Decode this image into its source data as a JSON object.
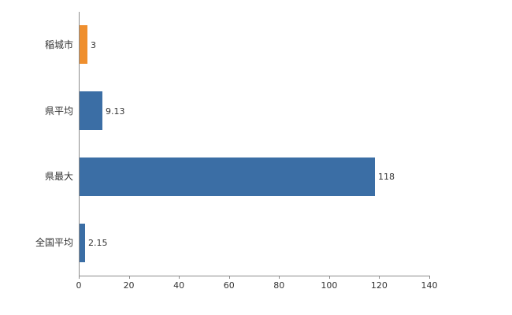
{
  "chart": {
    "background_color": "#ffffff",
    "axis_color": "#8c8c8c",
    "text_color": "#333333",
    "blue_bar_color": "#3b6ea5",
    "orange_bar_color": "#ef8f2e"
  },
  "chart_data": {
    "type": "bar",
    "orientation": "horizontal",
    "title": "",
    "xlabel": "",
    "ylabel": "",
    "categories": [
      "稲城市",
      "県平均",
      "県最大",
      "全国平均"
    ],
    "values": [
      3,
      9.13,
      118,
      2.15
    ],
    "value_labels": [
      "3",
      "9.13",
      "118",
      "2.15"
    ],
    "bar_colors": [
      "#ef8f2e",
      "#3b6ea5",
      "#3b6ea5",
      "#3b6ea5"
    ],
    "xlim": [
      0,
      140
    ],
    "x_ticks": [
      0,
      20,
      40,
      60,
      80,
      100,
      120,
      140
    ],
    "x_tick_labels": [
      "0",
      "20",
      "40",
      "60",
      "80",
      "100",
      "120",
      "140"
    ],
    "grid": false,
    "legend": null
  }
}
